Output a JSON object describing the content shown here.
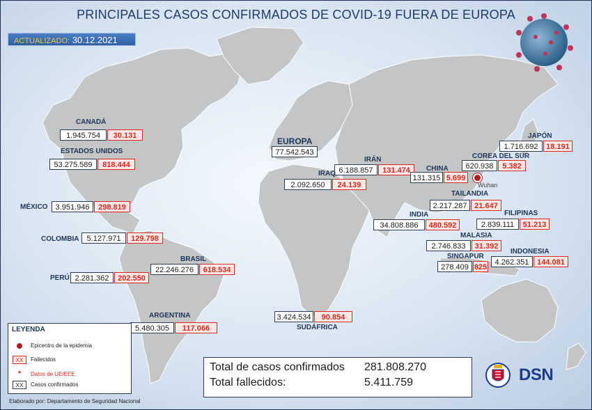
{
  "title": "PRINCIPALES CASOS CONFIRMADOS DE COVID-19 FUERA DE EUROPA",
  "update": {
    "label": "ACTUALIZADO:",
    "date": "30.12.2021"
  },
  "countries": {
    "canada": {
      "name": "CANADÁ",
      "cases": "1.945.754",
      "deaths": "30.131"
    },
    "usa": {
      "name": "ESTADOS UNIDOS",
      "cases": "53.275.589",
      "deaths": "818.444"
    },
    "mexico": {
      "name": "MÉXICO",
      "cases": "3.951.946",
      "deaths": "298.819"
    },
    "colombia": {
      "name": "COLOMBIA",
      "cases": "5.127.971",
      "deaths": "129.798"
    },
    "peru": {
      "name": "PERÚ",
      "cases": "2.281.362",
      "deaths": "202.550"
    },
    "brasil": {
      "name": "BRASIL",
      "cases": "22.246.276",
      "deaths": "618.534"
    },
    "argentina": {
      "name": "ARGENTINA",
      "cases": "5.480.305",
      "deaths": "117.066"
    },
    "europa": {
      "name": "EUROPA",
      "cases": "77.542.543"
    },
    "iran": {
      "name": "IRÁN",
      "cases": "6.188.857",
      "deaths": "131.474"
    },
    "iraq": {
      "name": "IRAQ",
      "cases": "2.092.650",
      "deaths": "24.139"
    },
    "china": {
      "name": "CHINA",
      "cases": "131.315",
      "deaths": "5.699"
    },
    "japon": {
      "name": "JAPÓN",
      "cases": "1.716.692",
      "deaths": "18.191"
    },
    "corea": {
      "name": "COREA DEL SUR",
      "cases": "620.938",
      "deaths": "5.382"
    },
    "tailandia": {
      "name": "TAILANDIA",
      "cases": "2.217.287",
      "deaths": "21.647"
    },
    "india": {
      "name": "INDIA",
      "cases": "34.808.886",
      "deaths": "480.592"
    },
    "filipinas": {
      "name": "FILIPINAS",
      "cases": "2.839.111",
      "deaths": "51.213"
    },
    "malasia": {
      "name": "MALASIA",
      "cases": "2.746.833",
      "deaths": "31.392"
    },
    "singapur": {
      "name": "SINGAPUR",
      "cases": "278.409",
      "deaths": "825"
    },
    "indonesia": {
      "name": "INDONESIA",
      "cases": "4.262.351",
      "deaths": "144.081"
    },
    "sudafrica": {
      "name": "SUDÁFRICA",
      "cases": "3.424.534",
      "deaths": "90.854"
    }
  },
  "wuhan_label": "Wuhan",
  "legend": {
    "title": "LEYENDA",
    "epicenter": "Epicentro de la epidemia",
    "deaths_swatch": "XX",
    "deaths": "Fallecidos",
    "ue_star": "*",
    "ue": "Datos de UE/EEE",
    "cases_swatch": "XX",
    "cases": "Casos confirmados"
  },
  "totals": {
    "cases_label": "Total de casos confirmados",
    "cases_value": "281.808.270",
    "deaths_label": "Total fallecidos:",
    "deaths_value": "5.411.759"
  },
  "footer": "Elaborado por: Departamento de Seguridad Nacional",
  "logo_text": "DSN",
  "colors": {
    "title": "#1e3a66",
    "deaths": "#d8291e",
    "land": "#c3c5c7",
    "epicenter": "#b51d1d"
  }
}
